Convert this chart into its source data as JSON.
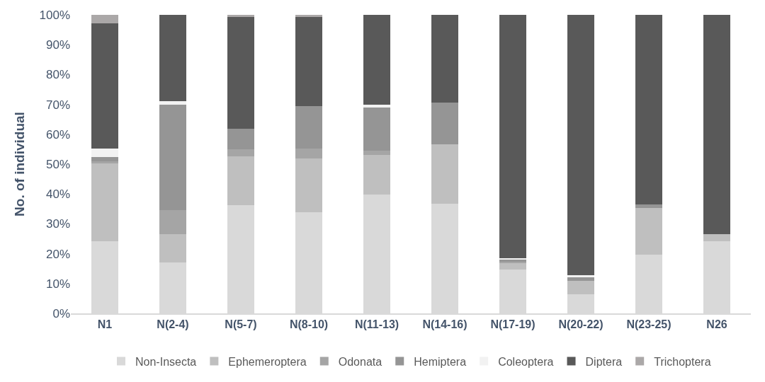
{
  "chart_data": {
    "type": "bar",
    "stacked": true,
    "ylabel": "No. of individual",
    "categories": [
      "N1",
      "N(2-4)",
      "N(5-7)",
      "N(8-10)",
      "N(11-13)",
      "N(14-16)",
      "N(17-19)",
      "N(20-22)",
      "N(23-25)",
      "N26"
    ],
    "series": [
      {
        "name": "Non-Insecta",
        "color": "#d9d9d9",
        "values": [
          24.2,
          17.1,
          36.2,
          34.0,
          39.8,
          36.8,
          14.6,
          6.5,
          19.7,
          24.2
        ]
      },
      {
        "name": "Ephemeroptera",
        "color": "#bfbfbf",
        "values": [
          26.1,
          9.4,
          16.5,
          17.8,
          13.2,
          19.8,
          2.3,
          4.5,
          15.7,
          2.3
        ]
      },
      {
        "name": "Odonata",
        "color": "#a5a5a5",
        "values": [
          0.6,
          8.1,
          2.3,
          3.5,
          1.6,
          null,
          0.4,
          null,
          null,
          null
        ]
      },
      {
        "name": "Hemiptera",
        "color": "#959595",
        "values": [
          1.5,
          35.3,
          6.9,
          14.2,
          14.3,
          13.9,
          0.6,
          1.3,
          1.2,
          null
        ]
      },
      {
        "name": "Coleoptera",
        "color": "#f2f2f2",
        "values": [
          2.9,
          1.2,
          null,
          null,
          1.0,
          null,
          0.5,
          0.4,
          null,
          null
        ]
      },
      {
        "name": "Diptera",
        "color": "#595959",
        "values": [
          41.8,
          28.9,
          37.4,
          29.8,
          30.1,
          29.5,
          81.6,
          87.3,
          63.4,
          73.5
        ]
      },
      {
        "name": "Trichoptera",
        "color": "#aba8a8",
        "values": [
          2.9,
          null,
          0.7,
          0.7,
          null,
          null,
          null,
          null,
          null,
          null
        ]
      }
    ],
    "ylim": [
      0,
      100
    ],
    "yticks": [
      {
        "value": 0,
        "label": "0%"
      },
      {
        "value": 10,
        "label": "10%"
      },
      {
        "value": 20,
        "label": "20%"
      },
      {
        "value": 30,
        "label": "30%"
      },
      {
        "value": 40,
        "label": "40%"
      },
      {
        "value": 50,
        "label": "50%"
      },
      {
        "value": 60,
        "label": "60%"
      },
      {
        "value": 70,
        "label": "70%"
      },
      {
        "value": 80,
        "label": "80%"
      },
      {
        "value": 90,
        "label": "90%"
      },
      {
        "value": 100,
        "label": "100%"
      }
    ],
    "grid": false,
    "legend": "bottom"
  }
}
